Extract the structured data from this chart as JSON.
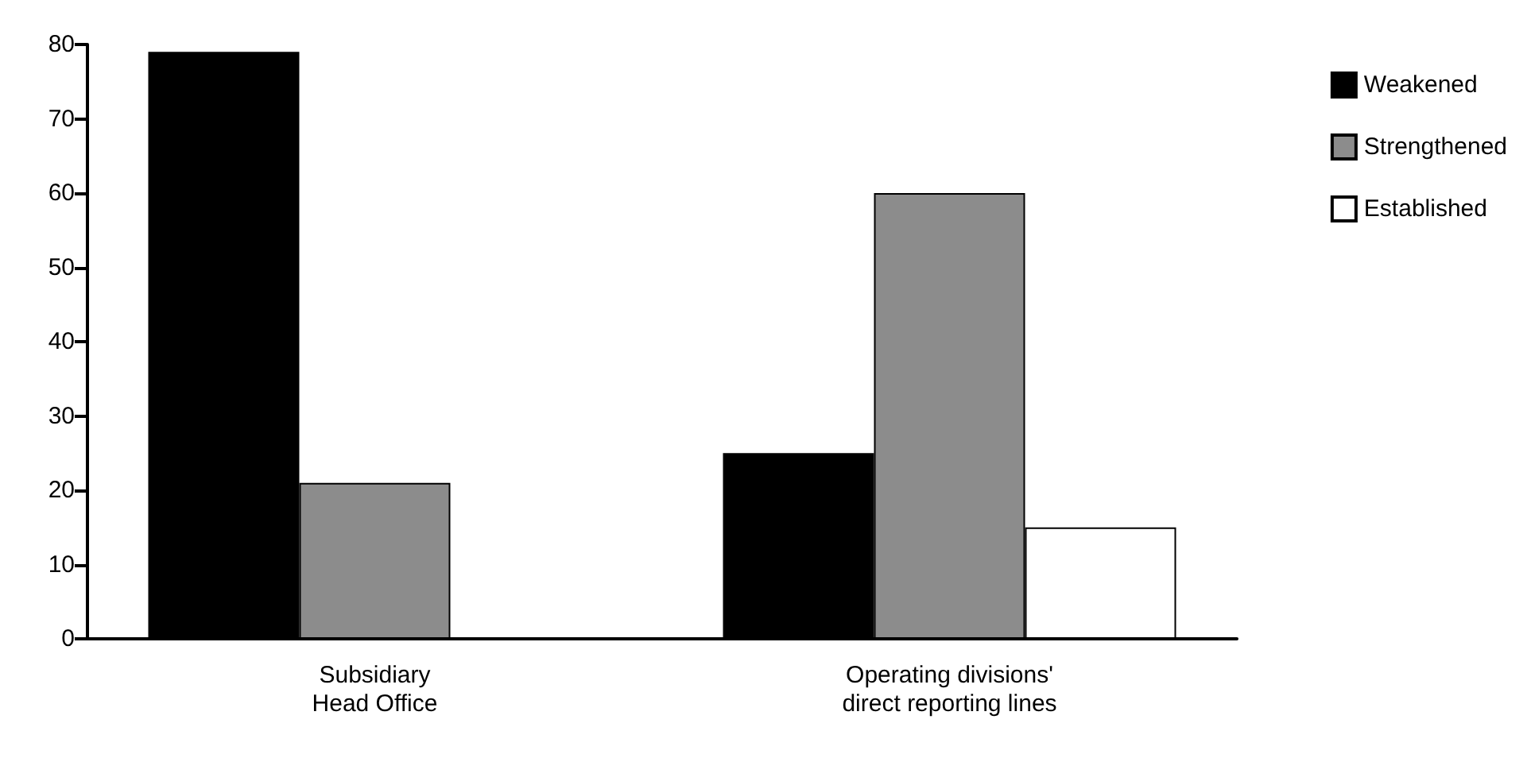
{
  "chart_data": {
    "type": "bar",
    "categories": [
      "Subsidiary\nHead Office",
      "Operating divisions'\ndirect reporting lines"
    ],
    "series": [
      {
        "name": "Weakened",
        "color": "#000000",
        "values": [
          79,
          25
        ]
      },
      {
        "name": "Strengthened",
        "color": "#8c8c8c",
        "values": [
          21,
          60
        ]
      },
      {
        "name": "Established",
        "color": "#ffffff",
        "values": [
          null,
          15
        ]
      }
    ],
    "ylim": [
      0,
      80
    ],
    "yticks": [
      0,
      10,
      20,
      30,
      40,
      50,
      60,
      70,
      80
    ],
    "grid": false,
    "legend": "right"
  }
}
